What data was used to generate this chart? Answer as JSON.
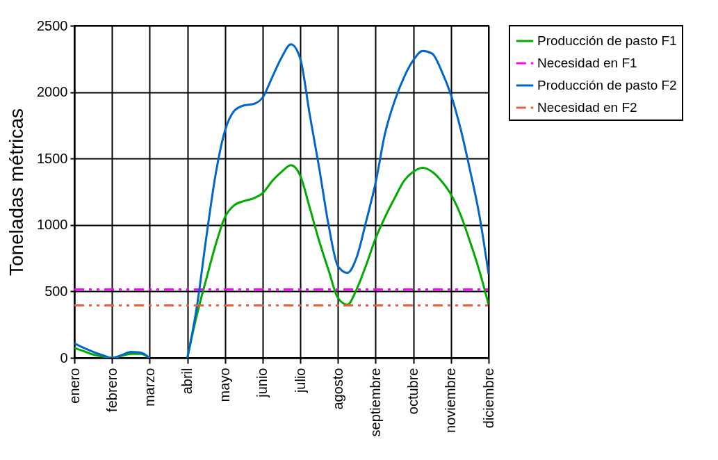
{
  "chart_data": {
    "type": "line",
    "ylabel": "Toneladas métricas",
    "categories": [
      "enero",
      null,
      null,
      null,
      "febrero",
      null,
      null,
      null,
      "marzo",
      null,
      null,
      null,
      "abril",
      null,
      null,
      null,
      "mayo",
      null,
      null,
      null,
      "junio",
      null,
      null,
      null,
      "julio",
      null,
      null,
      null,
      "agosto",
      null,
      null,
      null,
      "septiembre",
      null,
      null,
      null,
      "octubre",
      null,
      null,
      null,
      "noviembre",
      null,
      null,
      null,
      "diciembre"
    ],
    "ylim": [
      0,
      2500
    ],
    "yticks": [
      0,
      500,
      1000,
      1500,
      2000,
      2500
    ],
    "grid": true,
    "legend": "right",
    "marker": "none",
    "series": [
      {
        "name": "Producción de pasto F1",
        "color": "#00aa00",
        "line_style": "solid",
        "values": [
          75,
          50,
          25,
          10,
          0,
          15,
          30,
          30,
          0,
          null,
          null,
          null,
          0,
          320,
          590,
          850,
          1060,
          1150,
          1180,
          1200,
          1240,
          1330,
          1400,
          1450,
          1370,
          1130,
          880,
          660,
          450,
          400,
          520,
          700,
          900,
          1060,
          1200,
          1330,
          1400,
          1430,
          1400,
          1330,
          1230,
          1080,
          880,
          660,
          400
        ]
      },
      {
        "name": "Necesidad en F1",
        "color": "#ff00ff",
        "line_style": "dashed",
        "values": [
          515,
          515,
          515,
          515,
          515,
          515,
          515,
          515,
          515,
          515,
          515,
          515,
          515,
          515,
          515,
          515,
          515,
          515,
          515,
          515,
          515,
          515,
          515,
          515,
          515,
          515,
          515,
          515,
          515,
          515,
          515,
          515,
          515,
          515,
          515,
          515,
          515,
          515,
          515,
          515,
          515,
          515,
          515,
          515,
          515
        ]
      },
      {
        "name": "Producción de pasto F2",
        "color": "#0066cc",
        "line_style": "solid",
        "values": [
          110,
          75,
          45,
          20,
          0,
          20,
          45,
          40,
          0,
          null,
          null,
          null,
          0,
          380,
          900,
          1380,
          1710,
          1860,
          1900,
          1910,
          1960,
          2110,
          2260,
          2360,
          2250,
          1830,
          1430,
          1000,
          690,
          640,
          760,
          1030,
          1320,
          1690,
          1930,
          2110,
          2240,
          2310,
          2290,
          2160,
          1980,
          1730,
          1420,
          1080,
          630
        ]
      },
      {
        "name": "Necesidad en F2",
        "color": "#e8603c",
        "line_style": "dashed",
        "values": [
          395,
          395,
          395,
          395,
          395,
          395,
          395,
          395,
          395,
          395,
          395,
          395,
          395,
          395,
          395,
          395,
          395,
          395,
          395,
          395,
          395,
          395,
          395,
          395,
          395,
          395,
          395,
          395,
          395,
          395,
          395,
          395,
          395,
          395,
          395,
          395,
          395,
          395,
          395,
          395,
          395,
          395,
          395,
          395,
          395
        ]
      }
    ]
  }
}
